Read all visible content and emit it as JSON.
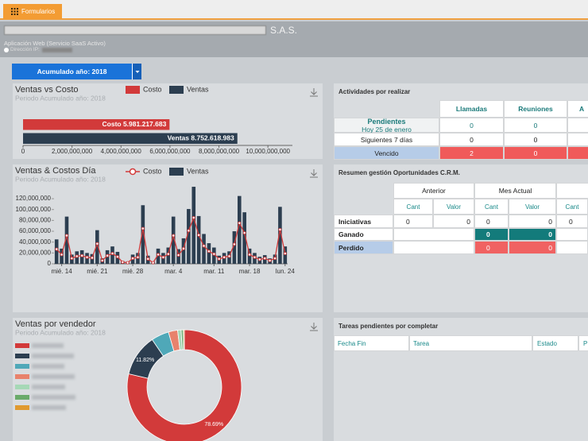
{
  "tab": "Formularios",
  "header": {
    "company_suffix": "S.A.S.",
    "subtitle": "Aplicación Web (Servicio SaaS Activo)",
    "ip_label": "Dirección IP:"
  },
  "filter": "Acumulado año: 2018",
  "chart_data": [
    {
      "type": "bar",
      "orientation": "horizontal",
      "title": "Ventas vs Costo",
      "subtitle": "Periodo Acumulado año: 2018",
      "series": [
        {
          "name": "Costo",
          "color": "#d23a3a",
          "values": [
            5981217683
          ],
          "value_labels": [
            "Costo 5.981.217.683"
          ]
        },
        {
          "name": "Ventas",
          "color": "#2c3e50",
          "values": [
            8752618983
          ],
          "value_labels": [
            "Ventas 8.752.618.983"
          ]
        }
      ],
      "xlim": [
        0,
        11000000000
      ],
      "xticks": [
        0,
        {
          "value": 2000000000,
          "label": "2,000,000,000"
        },
        {
          "value": 4000000000,
          "label": "4,000,000,000"
        },
        {
          "value": 6000000000,
          "label": "6,000,000,000"
        },
        {
          "value": 8000000000,
          "label": "8,000,000,000"
        },
        {
          "value": 10000000000,
          "label": "10,000,000,000"
        }
      ]
    },
    {
      "type": "bar",
      "title": "Ventas & Costos Día",
      "subtitle": "Periodo Acumulado año: 2018",
      "categories": [
        null,
        "mié. 14",
        null,
        null,
        null,
        null,
        null,
        null,
        "mié. 21",
        null,
        null,
        null,
        null,
        null,
        null,
        "mié. 28",
        null,
        null,
        null,
        null,
        null,
        null,
        null,
        "mar. 4",
        null,
        null,
        null,
        null,
        null,
        null,
        null,
        "mar. 11",
        null,
        null,
        null,
        null,
        null,
        null,
        "mar. 18",
        null,
        null,
        null,
        null,
        null,
        null,
        "lun. 24"
      ],
      "series": [
        {
          "name": "Costo",
          "type": "line",
          "color": "#d23a3a",
          "values": [
            27000000,
            17000000,
            52000000,
            10000000,
            14000000,
            15000000,
            12000000,
            11000000,
            37000000,
            6000000,
            15000000,
            19000000,
            13000000,
            3000000,
            2000000,
            10000000,
            12000000,
            65000000,
            9000000,
            2000000,
            17000000,
            12000000,
            18000000,
            52000000,
            16000000,
            28000000,
            61000000,
            85000000,
            53000000,
            33000000,
            23000000,
            18000000,
            9000000,
            12000000,
            14000000,
            36000000,
            75000000,
            57000000,
            17000000,
            12000000,
            8000000,
            10000000,
            6000000,
            10000000,
            63000000,
            19000000
          ]
        },
        {
          "name": "Ventas",
          "type": "bar",
          "color": "#2c3e50",
          "values": [
            45000000,
            28000000,
            87000000,
            17000000,
            23000000,
            25000000,
            20000000,
            18000000,
            62000000,
            10000000,
            25000000,
            32000000,
            22000000,
            5000000,
            4000000,
            17000000,
            20000000,
            108000000,
            15000000,
            4000000,
            28000000,
            20000000,
            30000000,
            87000000,
            27000000,
            47000000,
            101000000,
            142000000,
            88000000,
            55000000,
            38000000,
            30000000,
            15000000,
            20000000,
            23000000,
            60000000,
            125000000,
            95000000,
            28000000,
            20000000,
            13000000,
            16000000,
            10000000,
            17000000,
            105000000,
            32000000
          ]
        }
      ],
      "ylim": [
        0,
        145000000
      ],
      "yticks": [
        0,
        {
          "value": 20000000,
          "label": "20,000,000"
        },
        {
          "value": 40000000,
          "label": "40,000,000"
        },
        {
          "value": 60000000,
          "label": "60,000,000"
        },
        {
          "value": 80000000,
          "label": "80,000,000"
        },
        {
          "value": 100000000,
          "label": "100,000,000"
        },
        {
          "value": 120000000,
          "label": "120,000,000"
        }
      ]
    },
    {
      "type": "pie",
      "donut": true,
      "title": "Ventas por vendedor",
      "subtitle": "Periodo Acumulado año: 2018",
      "values": [
        78.69,
        11.82,
        5.0,
        2.6,
        1.0,
        0.6,
        0.29
      ],
      "value_labels": [
        "78.69%",
        "11.82%",
        null,
        null,
        null,
        null,
        null
      ],
      "colors": [
        "#d23a3a",
        "#2c3e50",
        "#4fa8b8",
        "#e8826c",
        "#a6d8b6",
        "#6aaa6a",
        "#e09a30"
      ]
    }
  ],
  "activities": {
    "title": "Actividades por realizar",
    "columns": [
      "Llamadas",
      "Reuniones",
      "A"
    ],
    "rows": [
      {
        "label": "Pendientes",
        "sublabel": "Hoy 25 de enero",
        "cells": [
          0,
          0
        ]
      },
      {
        "label": "Siguientes 7 días",
        "cells": [
          0,
          0
        ]
      },
      {
        "label": "Vencido",
        "cells": [
          2,
          0
        ]
      }
    ]
  },
  "crm": {
    "title": "Resumen gestión Oportunidades C.R.M.",
    "groups": [
      "Anterior",
      "Mes Actual"
    ],
    "subcolumns": [
      "Cant",
      "Valor",
      "Cant",
      "Valor",
      "Cant"
    ],
    "rows": [
      {
        "label": "Iniciativas",
        "cells": [
          0,
          0,
          0,
          0,
          0
        ]
      },
      {
        "label": "Ganado",
        "cells": [
          0,
          0
        ]
      },
      {
        "label": "Perdido",
        "cells": [
          0,
          0
        ]
      }
    ]
  },
  "tasks": {
    "title": "Tareas pendientes por completar",
    "columns": [
      "Fecha Fin",
      "Tarea",
      "Estado",
      "P"
    ]
  }
}
